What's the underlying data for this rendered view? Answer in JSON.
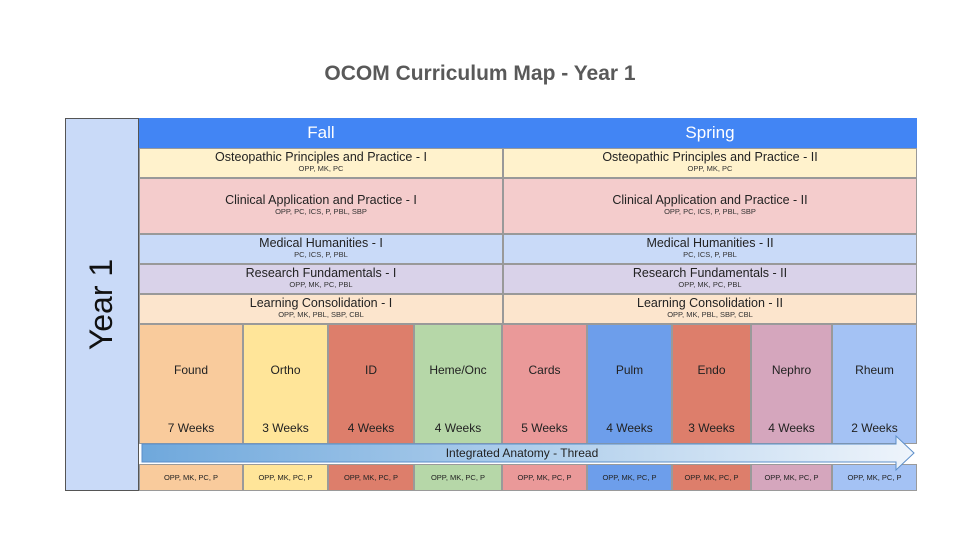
{
  "title": "OCOM Curriculum Map - Year 1",
  "year_label": "Year 1",
  "seasons": {
    "fall": "Fall",
    "spring": "Spring"
  },
  "courses": [
    {
      "fall_name": "Osteopathic Principles and Practice - I",
      "fall_codes": "OPP, MK, PC",
      "spring_name": "Osteopathic Principles and Practice - II",
      "spring_codes": "OPP, MK, PC",
      "color": "#fff2cc"
    },
    {
      "fall_name": "Clinical Application and Practice - I",
      "fall_codes": "OPP, PC, ICS, P, PBL, SBP",
      "spring_name": "Clinical Application and Practice - II",
      "spring_codes": "OPP, PC, ICS, P, PBL, SBP",
      "color": "#f4cccc"
    },
    {
      "fall_name": "Medical Humanities - I",
      "fall_codes": "PC, ICS, P, PBL",
      "spring_name": "Medical Humanities - II",
      "spring_codes": "PC, ICS, P, PBL",
      "color": "#c9daf8"
    },
    {
      "fall_name": "Research Fundamentals - I",
      "fall_codes": "OPP, MK, PC, PBL",
      "spring_name": "Research Fundamentals - II",
      "spring_codes": "OPP, MK, PC, PBL",
      "color": "#d9d2e9"
    },
    {
      "fall_name": "Learning Consolidation - I",
      "fall_codes": "OPP, MK, PBL, SBP, CBL",
      "spring_name": "Learning Consolidation - II",
      "spring_codes": "OPP, MK, PBL, SBP, CBL",
      "color": "#fce5cd"
    }
  ],
  "blocks": [
    {
      "name": "Found",
      "weeks": "7 Weeks",
      "codes": "OPP, MK, PC, P",
      "color": "#f9cb9c"
    },
    {
      "name": "Ortho",
      "weeks": "3 Weeks",
      "codes": "OPP, MK, PC, P",
      "color": "#ffe599"
    },
    {
      "name": "ID",
      "weeks": "4 Weeks",
      "codes": "OPP, MK, PC, P",
      "color": "#dd7e6b"
    },
    {
      "name": "Heme/Onc",
      "weeks": "4 Weeks",
      "codes": "OPP, MK, PC, P",
      "color": "#b6d7a8"
    },
    {
      "name": "Cards",
      "weeks": "5 Weeks",
      "codes": "OPP, MK, PC, P",
      "color": "#ea9999"
    },
    {
      "name": "Pulm",
      "weeks": "4 Weeks",
      "codes": "OPP, MK, PC, P",
      "color": "#6d9eeb"
    },
    {
      "name": "Endo",
      "weeks": "3 Weeks",
      "codes": "OPP, MK, PC, P",
      "color": "#dd7e6b"
    },
    {
      "name": "Nephro",
      "weeks": "4 Weeks",
      "codes": "OPP, MK, PC, P",
      "color": "#d5a6bd"
    },
    {
      "name": "Rheum",
      "weeks": "2 Weeks",
      "codes": "OPP, MK, PC, P",
      "color": "#a4c2f4"
    }
  ],
  "thread_label": "Integrated Anatomy - Thread",
  "colors": {
    "season_header": "#4285f4",
    "year_column": "#c9daf8",
    "thread_start": "#6fa8dc",
    "thread_end": "#eef4fb"
  }
}
